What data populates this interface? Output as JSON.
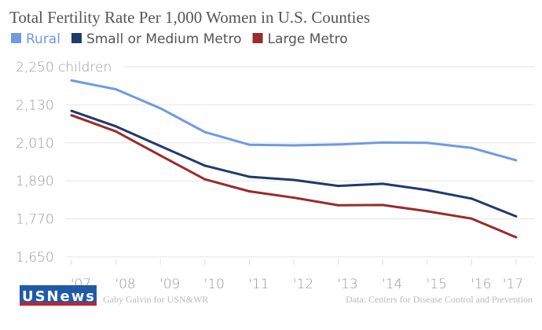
{
  "chart_data": {
    "type": "line",
    "title": "Total Fertility Rate Per 1,000 Women in U.S. Counties",
    "ylabel_unit": "children",
    "x": [
      "'07",
      "'08",
      "'09",
      "'10",
      "'11",
      "'12",
      "'13",
      "'14",
      "'15",
      "'16",
      "'17"
    ],
    "yticks": [
      "1,650",
      "1,770",
      "1,890",
      "2,010",
      "2,130",
      "2,250"
    ],
    "ylim": [
      1650,
      2250
    ],
    "grid": true,
    "legend_position": "top-left",
    "series": [
      {
        "name": "Rural",
        "color": "#6f9be0",
        "values": [
          2207,
          2179,
          2119,
          2044,
          2004,
          2002,
          2005,
          2011,
          2010,
          1994,
          1955
        ]
      },
      {
        "name": "Small or Medium Metro",
        "color": "#1f3a6e",
        "values": [
          2111,
          2062,
          2000,
          1938,
          1903,
          1893,
          1874,
          1881,
          1861,
          1834,
          1778
        ]
      },
      {
        "name": "Large Metro",
        "color": "#9b2a2a",
        "values": [
          2097,
          2046,
          1970,
          1895,
          1857,
          1837,
          1813,
          1814,
          1794,
          1771,
          1712
        ]
      }
    ]
  },
  "footer": {
    "logo": "U.S.News & WORLD REPORT",
    "credit": "Gaby Galvin for USN&WR",
    "source": "Data: Centers for Disease Control and Prevention"
  }
}
